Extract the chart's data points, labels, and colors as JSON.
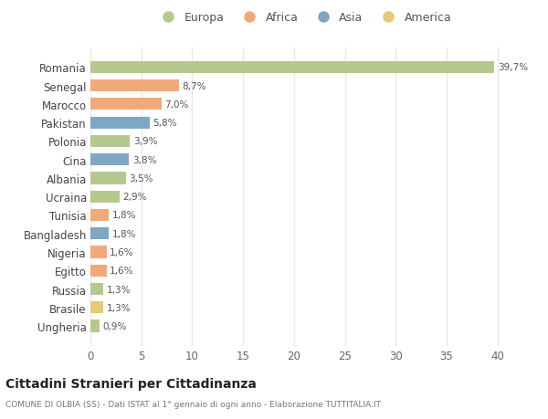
{
  "countries": [
    "Ungheria",
    "Brasile",
    "Russia",
    "Egitto",
    "Nigeria",
    "Bangladesh",
    "Tunisia",
    "Ucraina",
    "Albania",
    "Cina",
    "Polonia",
    "Pakistan",
    "Marocco",
    "Senegal",
    "Romania"
  ],
  "values": [
    0.9,
    1.3,
    1.3,
    1.6,
    1.6,
    1.8,
    1.8,
    2.9,
    3.5,
    3.8,
    3.9,
    5.8,
    7.0,
    8.7,
    39.7
  ],
  "labels": [
    "0,9%",
    "1,3%",
    "1,3%",
    "1,6%",
    "1,6%",
    "1,8%",
    "1,8%",
    "2,9%",
    "3,5%",
    "3,8%",
    "3,9%",
    "5,8%",
    "7,0%",
    "8,7%",
    "39,7%"
  ],
  "colors": [
    "#b5c98e",
    "#e8c97a",
    "#b5c98e",
    "#f2a97a",
    "#f2a97a",
    "#7da7c4",
    "#f2a97a",
    "#b5c98e",
    "#b5c98e",
    "#7da7c4",
    "#b5c98e",
    "#7da7c4",
    "#f2a97a",
    "#f2a97a",
    "#b5c98e"
  ],
  "continent_colors": {
    "Europa": "#b5c98e",
    "Africa": "#f2a97a",
    "Asia": "#7da7c4",
    "America": "#e8c97a"
  },
  "legend_labels": [
    "Europa",
    "Africa",
    "Asia",
    "America"
  ],
  "title": "Cittadini Stranieri per Cittadinanza",
  "subtitle": "COMUNE DI OLBIA (SS) - Dati ISTAT al 1° gennaio di ogni anno - Elaborazione TUTTITALIA.IT",
  "xlim": [
    0,
    42
  ],
  "xticks": [
    0,
    5,
    10,
    15,
    20,
    25,
    30,
    35,
    40
  ],
  "background_color": "#ffffff",
  "grid_color": "#e8e8e8",
  "bar_height": 0.65
}
